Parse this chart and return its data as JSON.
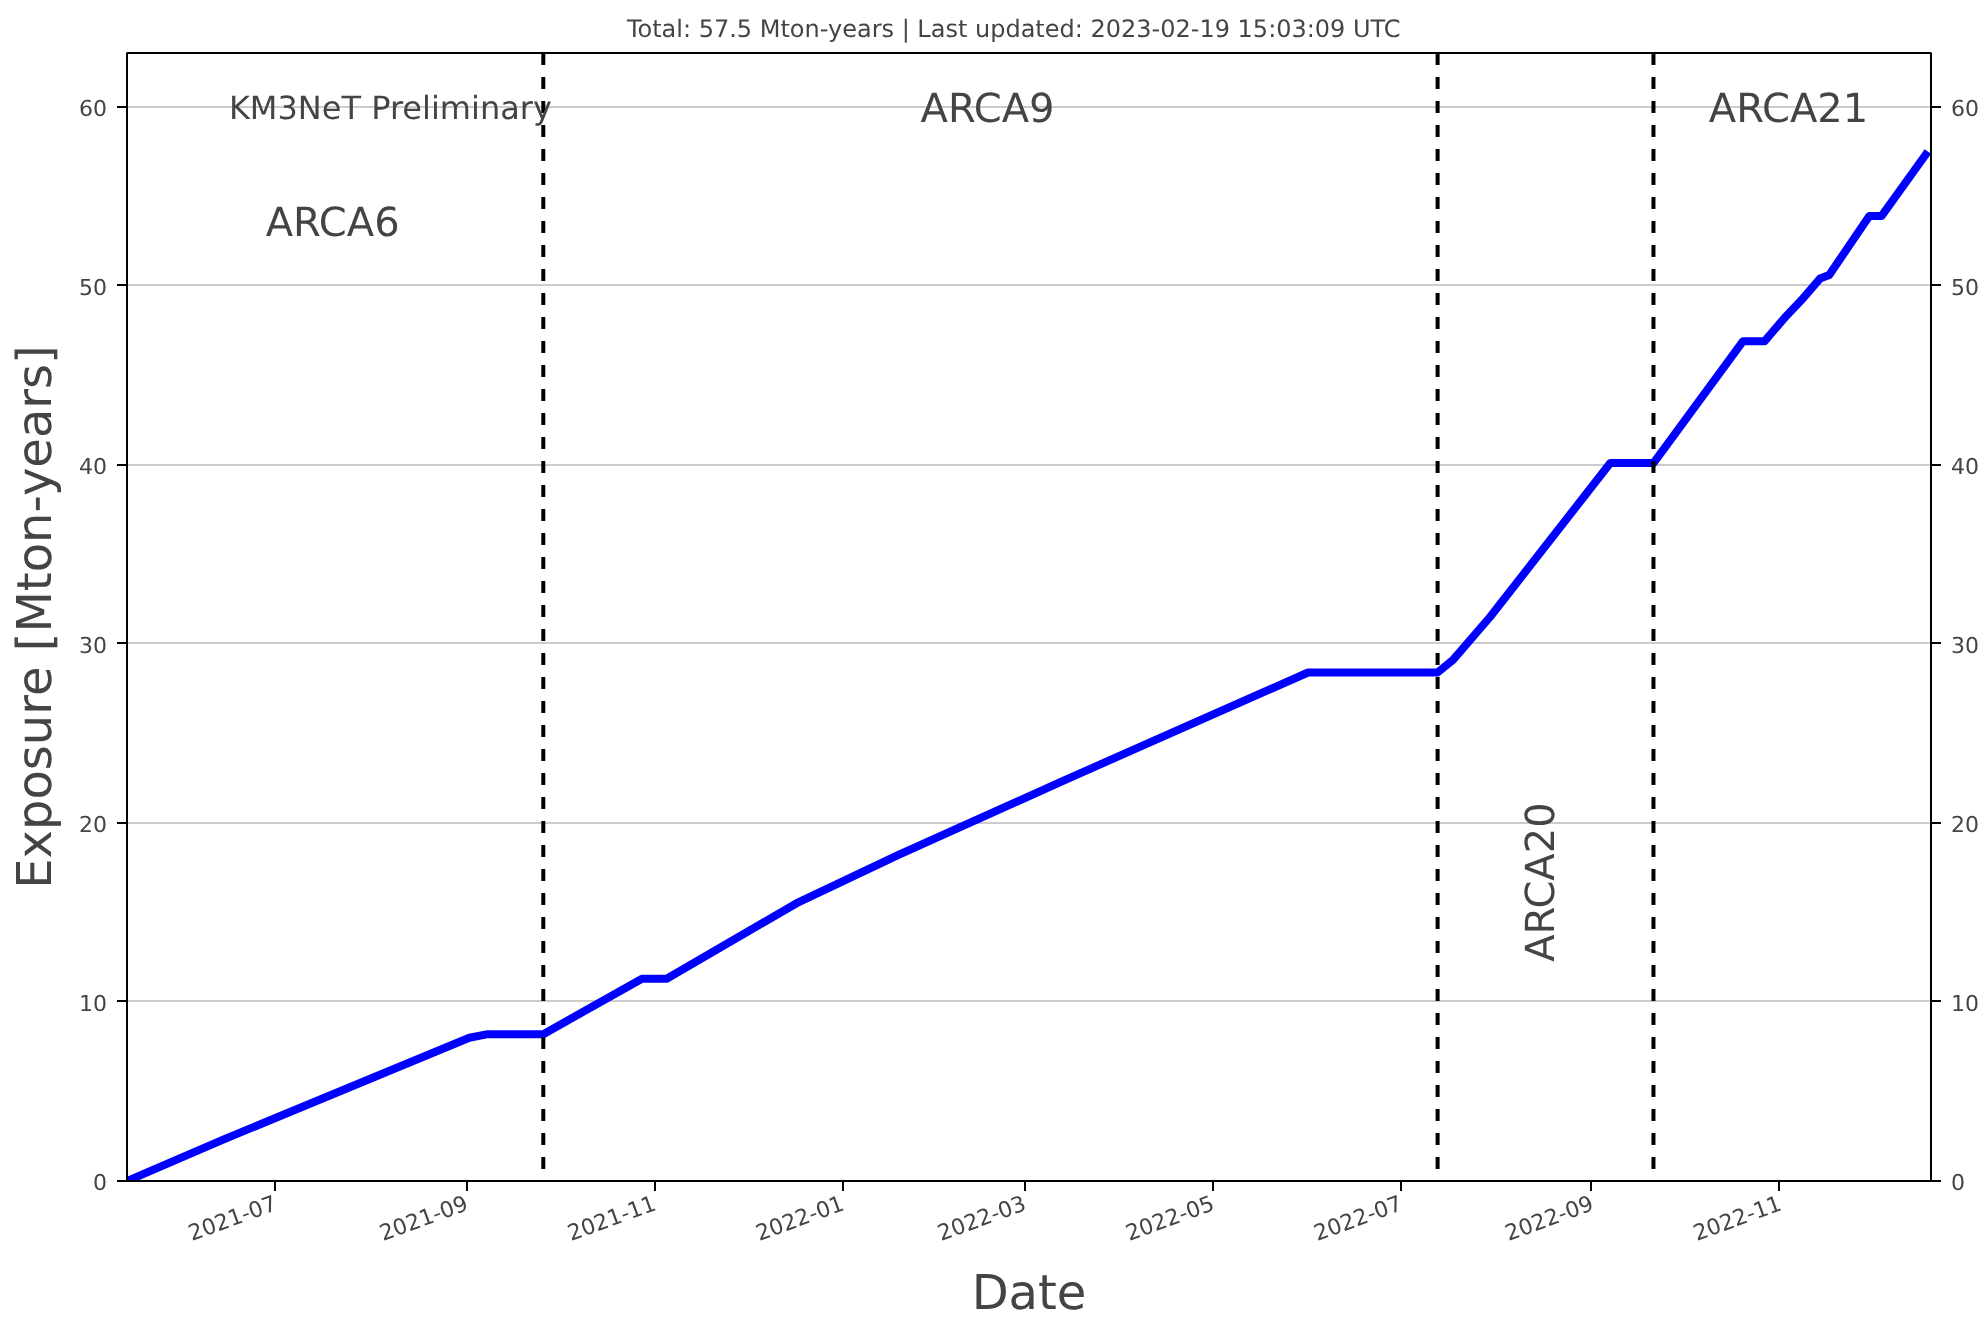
{
  "chart_data": {
    "type": "line",
    "title": "Total: 57.5 Mton-years   |   Last updated: 2023-02-19 15:03:09 UTC",
    "xlabel": "Date",
    "ylabel": "Exposure [Mton-years]",
    "x": [
      "2021-05-14",
      "2021-06-14",
      "2021-09-02",
      "2021-09-08",
      "2021-09-26",
      "2021-10-28",
      "2021-11-05",
      "2021-12-17",
      "2022-01-19",
      "2022-03-13",
      "2022-03-30",
      "2022-06-01",
      "2022-07-13",
      "2022-07-18",
      "2022-07-30",
      "2022-09-07",
      "2022-09-21",
      "2022-10-20",
      "2022-10-27",
      "2022-11-03",
      "2022-11-08",
      "2022-11-14",
      "2022-11-17",
      "2022-11-30",
      "2022-12-04",
      "2022-12-19"
    ],
    "series": [
      {
        "color": "#0000ff",
        "values": [
          0,
          2.3,
          8.0,
          8.2,
          8.2,
          11.3,
          11.3,
          15.5,
          18.2,
          22.3,
          23.6,
          28.4,
          28.4,
          29.1,
          31.5,
          40.1,
          40.1,
          46.9,
          46.9,
          48.3,
          49.2,
          50.4,
          50.6,
          53.9,
          53.9,
          57.5
        ]
      }
    ],
    "xlim": [
      "2021-05-14",
      "2022-12-20"
    ],
    "xticks": [
      "2021-07",
      "2021-09",
      "2021-11",
      "2022-01",
      "2022-03",
      "2022-05",
      "2022-07",
      "2022-09",
      "2022-11"
    ],
    "ylim": [
      0,
      63
    ],
    "yticks": [
      0,
      10,
      20,
      30,
      40,
      50,
      60
    ],
    "y2lim": [
      0,
      63
    ],
    "y2ticks": [
      0,
      10,
      20,
      30,
      40,
      50,
      60
    ],
    "grid": "y",
    "marker": "none",
    "line_style": "solid",
    "ref_lines": [
      {
        "axis": "x",
        "value": "2021-09-26",
        "color": "#000000",
        "line_style": "dashed"
      },
      {
        "axis": "x",
        "value": "2022-07-13",
        "color": "#000000",
        "line_style": "dashed"
      },
      {
        "axis": "x",
        "value": "2022-09-21",
        "color": "#000000",
        "line_style": "dashed"
      }
    ],
    "annotations": [
      "KM3NeT Preliminary",
      "ARCA6",
      "ARCA9",
      "ARCA20",
      "ARCA21"
    ]
  }
}
